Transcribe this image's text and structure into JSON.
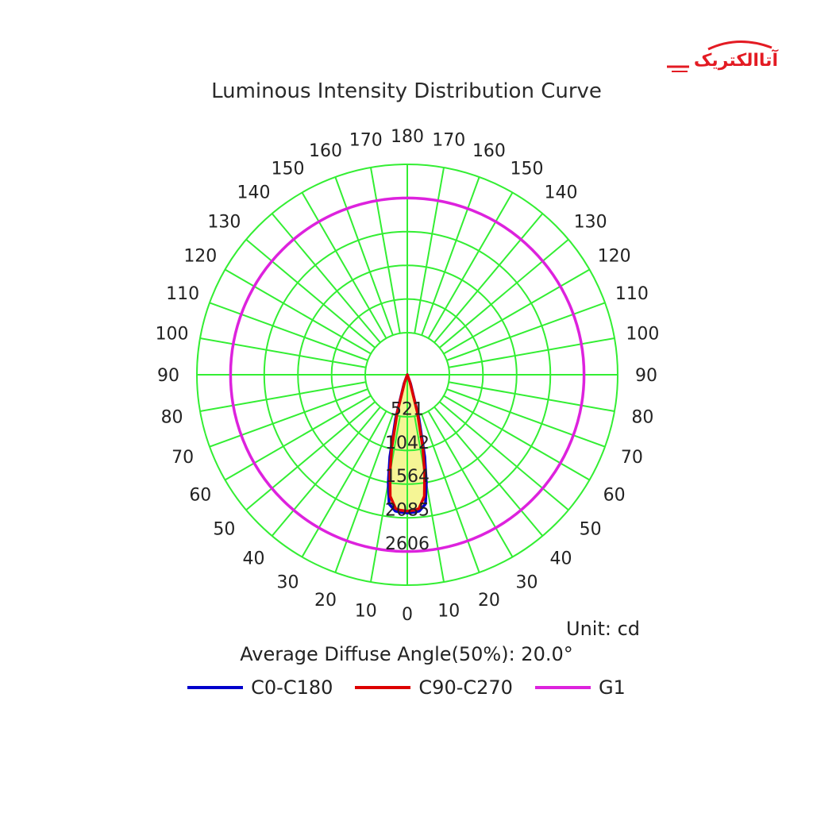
{
  "brand": {
    "text": "آتاالکتریک",
    "color": "#e31b23"
  },
  "chart_data": {
    "type": "polar",
    "title": "Luminous Intensity Distribution Curve",
    "unit_label": "Unit: cd",
    "annotation": "Average Diffuse Angle(50%): 20.0°",
    "radial_ticks": [
      521,
      1042,
      1564,
      2085,
      2606
    ],
    "radial_max": 2606,
    "angle_labels_left": [
      "0",
      "10",
      "20",
      "30",
      "40",
      "50",
      "60",
      "70",
      "80",
      "90",
      "100",
      "110",
      "120",
      "130",
      "140",
      "150",
      "160",
      "170",
      "180"
    ],
    "angle_labels_right": [
      "10",
      "20",
      "30",
      "40",
      "50",
      "60",
      "70",
      "80",
      "90",
      "100",
      "110",
      "120",
      "130",
      "140",
      "150",
      "160",
      "170"
    ],
    "grid_color": "#33ee33",
    "series": [
      {
        "name": "C0-C180",
        "color": "#0000cc",
        "angles": [
          -20,
          -15,
          -12,
          -10,
          -8,
          -5,
          -3,
          0,
          3,
          5,
          8,
          10,
          12,
          15,
          20
        ],
        "values": [
          150,
          700,
          1300,
          1700,
          2020,
          2120,
          2130,
          2140,
          2130,
          2120,
          2020,
          1700,
          1300,
          700,
          150
        ]
      },
      {
        "name": "C90-C270",
        "color": "#dd0000",
        "angles": [
          -20,
          -15,
          -12,
          -10,
          -8,
          -5,
          -3,
          0,
          3,
          5,
          8,
          10,
          12,
          15,
          20
        ],
        "values": [
          120,
          600,
          1150,
          1550,
          1900,
          2080,
          2100,
          2110,
          2100,
          2080,
          1900,
          1550,
          1150,
          600,
          120
        ]
      },
      {
        "name": "G1",
        "color": "#dd22dd",
        "angles": "all",
        "values": 2085
      }
    ]
  }
}
